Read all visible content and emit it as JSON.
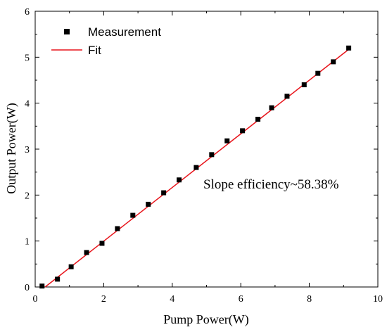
{
  "chart_data": {
    "type": "scatter",
    "xlabel": "Pump Power(W)",
    "ylabel": "Output Power(W)",
    "xlim": [
      0,
      10
    ],
    "ylim": [
      0,
      6
    ],
    "x_ticks": [
      "0",
      "2",
      "4",
      "6",
      "8",
      "10"
    ],
    "y_ticks": [
      "0",
      "1",
      "2",
      "3",
      "4",
      "5",
      "6"
    ],
    "grid": false,
    "legend_position": "top-left",
    "series": [
      {
        "name": "Measurement",
        "type": "scatter",
        "color": "#000000",
        "marker": "square",
        "x": [
          0.2,
          0.65,
          1.05,
          1.5,
          1.95,
          2.4,
          2.85,
          3.3,
          3.75,
          4.2,
          4.7,
          5.15,
          5.6,
          6.05,
          6.5,
          6.9,
          7.35,
          7.85,
          8.25,
          8.7,
          9.15
        ],
        "y": [
          0.02,
          0.17,
          0.44,
          0.75,
          0.95,
          1.27,
          1.56,
          1.8,
          2.05,
          2.33,
          2.6,
          2.88,
          3.18,
          3.4,
          3.65,
          3.9,
          4.15,
          4.4,
          4.65,
          4.9,
          5.2
        ]
      },
      {
        "name": "Fit",
        "type": "line",
        "color": "#e8141b",
        "x": [
          0.29,
          9.2
        ],
        "y": [
          0.0,
          5.2
        ]
      }
    ],
    "annotations": [
      {
        "text": "Slope efficiency~58.38%"
      }
    ]
  }
}
